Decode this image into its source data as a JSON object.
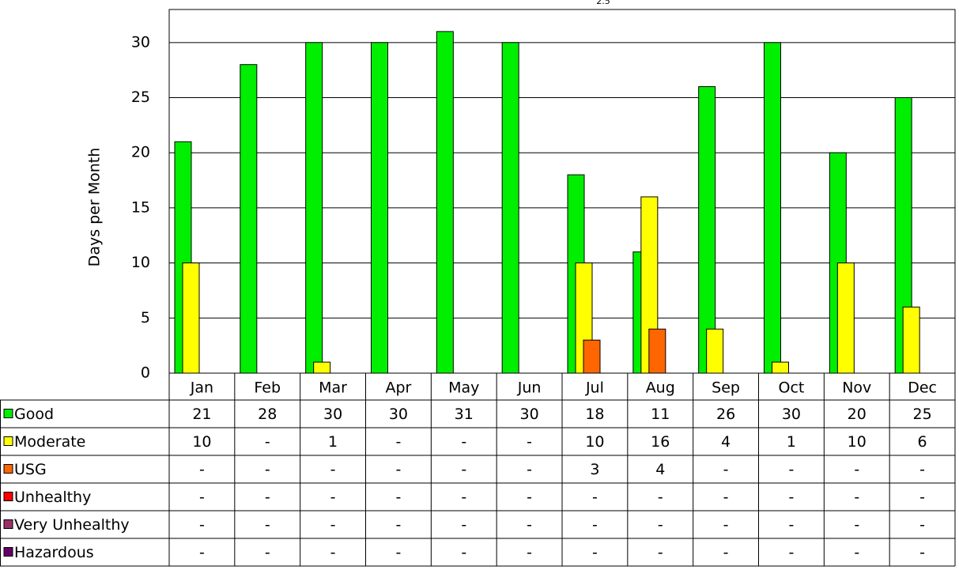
{
  "chart_data": {
    "type": "bar",
    "title": "2.5",
    "y_label": "Days per Month",
    "categories": [
      "Jan",
      "Feb",
      "Mar",
      "Apr",
      "May",
      "Jun",
      "Jul",
      "Aug",
      "Sep",
      "Oct",
      "Nov",
      "Dec"
    ],
    "series": [
      {
        "name": "Good",
        "color": "#00ee00",
        "values": [
          21,
          28,
          30,
          30,
          31,
          30,
          18,
          11,
          26,
          30,
          20,
          25
        ],
        "value_labels": [
          "21",
          "28",
          "30",
          "30",
          "31",
          "30",
          "18",
          "11",
          "26",
          "30",
          "20",
          "25"
        ]
      },
      {
        "name": "Moderate",
        "color": "#ffff00",
        "values": [
          10,
          null,
          1,
          null,
          null,
          null,
          10,
          16,
          4,
          1,
          10,
          6
        ],
        "value_labels": [
          "10",
          "-",
          "1",
          "-",
          "-",
          "-",
          "10",
          "16",
          "4",
          "1",
          "10",
          "6"
        ]
      },
      {
        "name": "USG",
        "color": "#ff6600",
        "values": [
          null,
          null,
          null,
          null,
          null,
          null,
          3,
          4,
          null,
          null,
          null,
          null
        ],
        "value_labels": [
          "-",
          "-",
          "-",
          "-",
          "-",
          "-",
          "3",
          "4",
          "-",
          "-",
          "-",
          "-"
        ]
      },
      {
        "name": "Unhealthy",
        "color": "#ff0000",
        "values": [
          null,
          null,
          null,
          null,
          null,
          null,
          null,
          null,
          null,
          null,
          null,
          null
        ],
        "value_labels": [
          "-",
          "-",
          "-",
          "-",
          "-",
          "-",
          "-",
          "-",
          "-",
          "-",
          "-",
          "-"
        ]
      },
      {
        "name": "Very Unhealthy",
        "color": "#993366",
        "values": [
          null,
          null,
          null,
          null,
          null,
          null,
          null,
          null,
          null,
          null,
          null,
          null
        ],
        "value_labels": [
          "-",
          "-",
          "-",
          "-",
          "-",
          "-",
          "-",
          "-",
          "-",
          "-",
          "-",
          "-"
        ]
      },
      {
        "name": "Hazardous",
        "color": "#660066",
        "values": [
          null,
          null,
          null,
          null,
          null,
          null,
          null,
          null,
          null,
          null,
          null,
          null
        ],
        "value_labels": [
          "-",
          "-",
          "-",
          "-",
          "-",
          "-",
          "-",
          "-",
          "-",
          "-",
          "-",
          "-"
        ]
      }
    ],
    "ylim": [
      0,
      33
    ],
    "yticks": [
      0,
      5,
      10,
      15,
      20,
      25,
      30
    ],
    "grid": true
  }
}
